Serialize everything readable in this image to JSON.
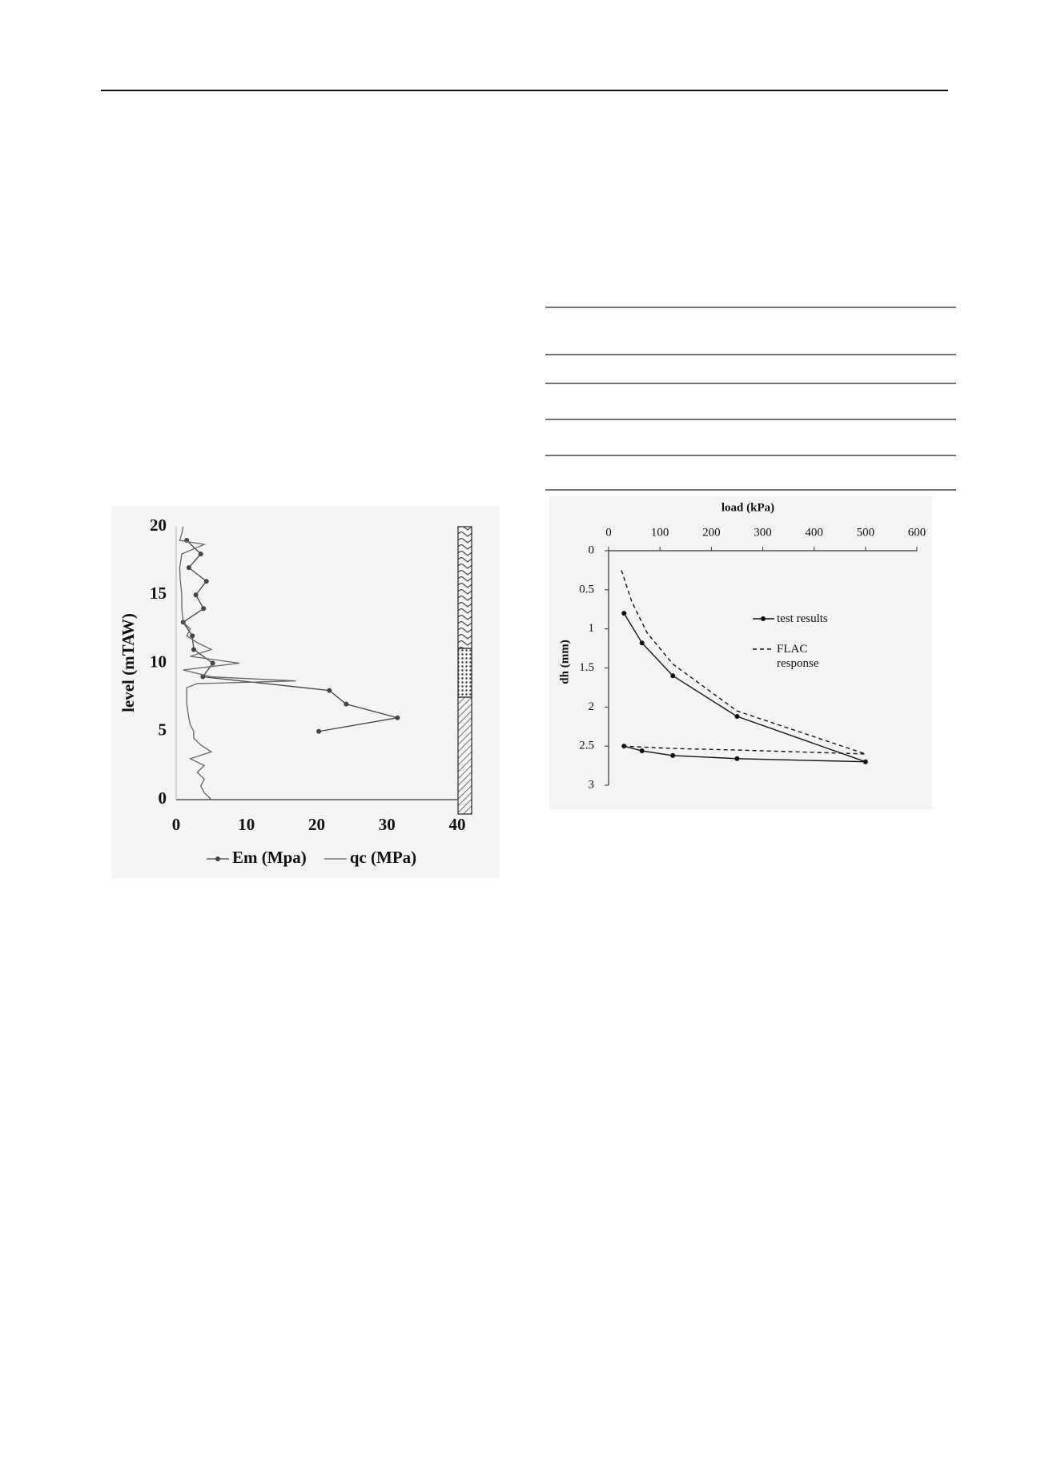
{
  "chart_data": [
    {
      "type": "line",
      "ylabel": "level (mTAW)",
      "xlim": [
        0,
        40
      ],
      "xticks": [
        0,
        10,
        20,
        30,
        40
      ],
      "ylim": [
        0,
        20
      ],
      "yticks": [
        0,
        5,
        10,
        15,
        20
      ],
      "legend": "bottom",
      "series": [
        {
          "name": "Em (Mpa)",
          "color": "#444444",
          "marker": true,
          "dash": false,
          "x": [
            1.5,
            3.5,
            1.8,
            4.3,
            2.8,
            3.9,
            1.0,
            2.3,
            2.5,
            5.2,
            3.8,
            21.8,
            24.2,
            31.5,
            20.3
          ],
          "values": [
            19,
            18,
            17,
            16,
            15,
            14,
            13,
            12,
            11,
            10,
            9,
            8,
            7,
            6,
            5
          ]
        },
        {
          "name": "qc (MPa)",
          "color": "#666666",
          "marker": false,
          "dash": false,
          "x": [
            1,
            0.8,
            0.5,
            4,
            0.8,
            0.5,
            0.6,
            0.8,
            0.8,
            1,
            2,
            1.5,
            3,
            5,
            2,
            9,
            1,
            5,
            17,
            3,
            1.5,
            1.5,
            1.5,
            1.8,
            2,
            2.5,
            2.5,
            3.5,
            5,
            2,
            4,
            3,
            4,
            3.5,
            4,
            5
          ],
          "values": [
            20,
            19.5,
            19,
            18.7,
            18,
            17,
            16,
            15,
            14,
            13,
            12.5,
            12,
            11.5,
            11,
            10.5,
            10,
            9.5,
            9,
            8.7,
            8.5,
            8.2,
            8,
            7,
            6,
            5.5,
            5,
            4.5,
            4,
            3.5,
            3,
            2.5,
            2,
            1.5,
            1,
            0.5,
            0
          ]
        }
      ]
    },
    {
      "type": "line",
      "xlabel": "load (kPa)",
      "ylabel": "dh (mm)",
      "xlim": [
        0,
        600
      ],
      "xticks": [
        0,
        100,
        200,
        300,
        400,
        500,
        600
      ],
      "ylim": [
        0,
        3
      ],
      "yticks": [
        0,
        0.5,
        1,
        1.5,
        2,
        2.5,
        3
      ],
      "y_inverted": true,
      "x_axis_position": "top",
      "legend": "inside",
      "series": [
        {
          "name": "test results",
          "color": "#111111",
          "marker": true,
          "dash": false,
          "x": [
            30,
            65,
            125,
            250,
            500,
            250,
            125,
            65,
            30
          ],
          "values": [
            0.8,
            1.18,
            1.6,
            2.12,
            2.7,
            2.66,
            2.62,
            2.56,
            2.5
          ]
        },
        {
          "name": "FLAC response",
          "color": "#111111",
          "marker": false,
          "dash": true,
          "x": [
            25,
            45,
            75,
            125,
            250,
            500,
            250,
            125,
            30
          ],
          "values": [
            0.25,
            0.65,
            1.05,
            1.45,
            2.05,
            2.6,
            2.55,
            2.53,
            2.5
          ]
        }
      ]
    }
  ]
}
